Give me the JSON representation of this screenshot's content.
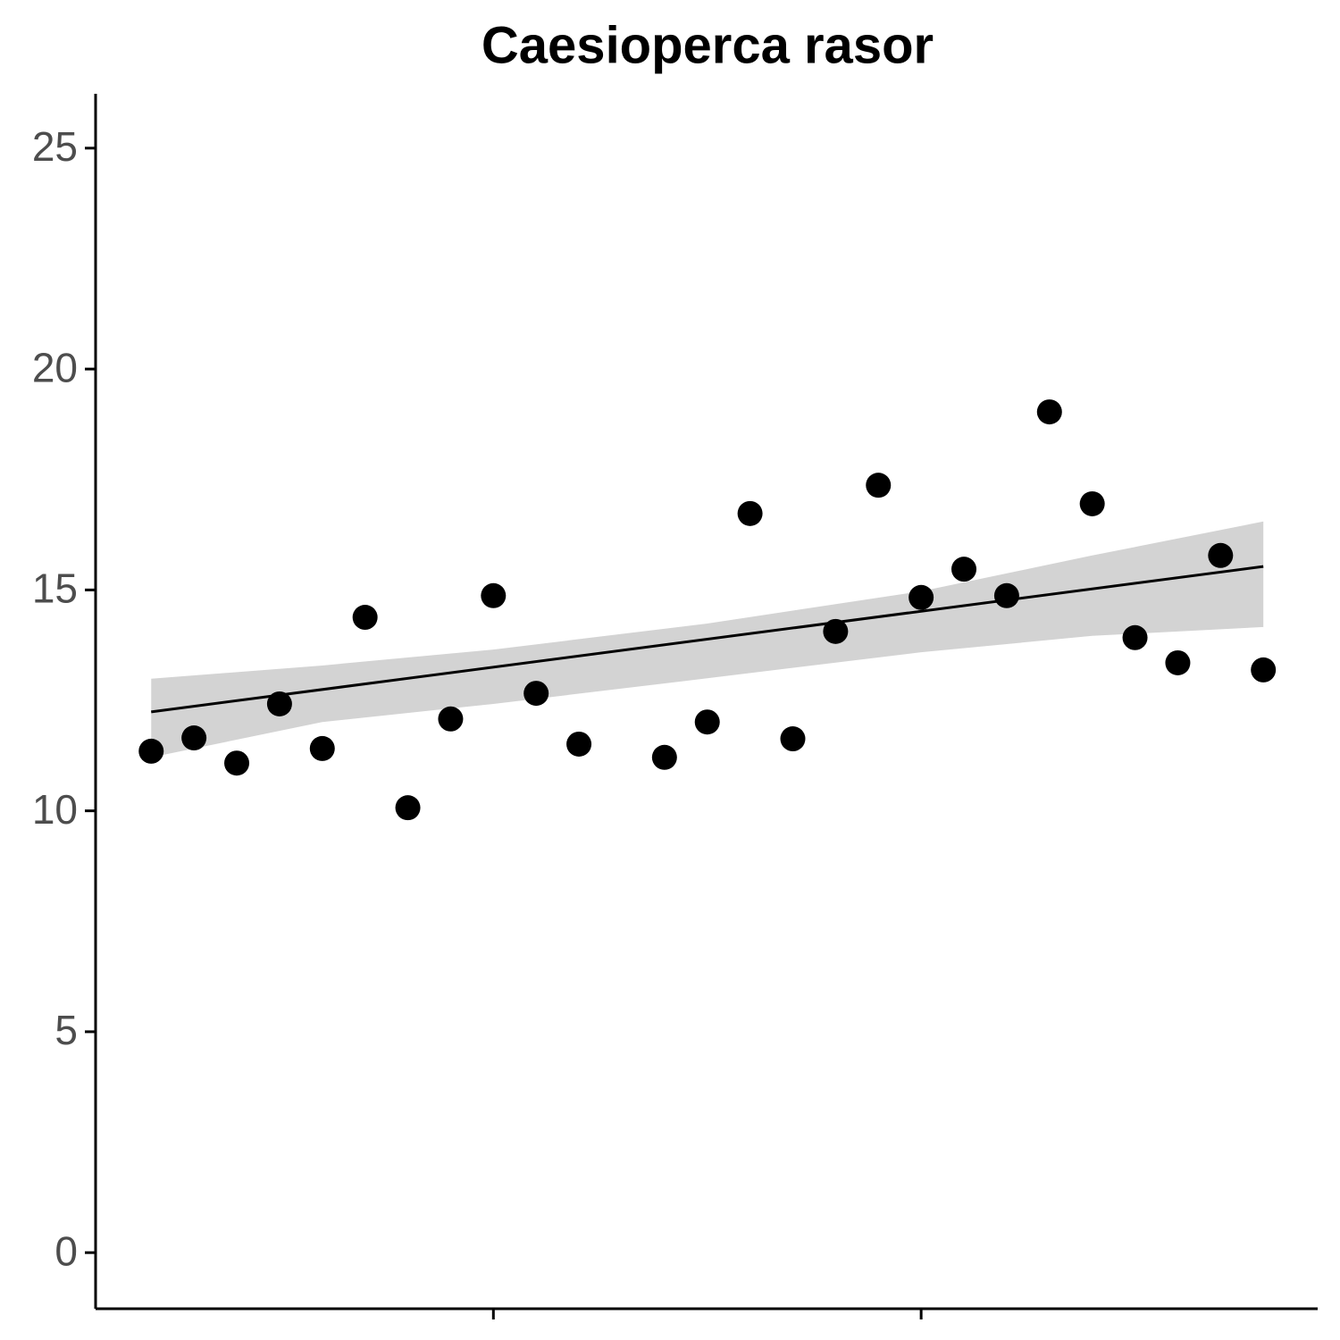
{
  "chart_data": {
    "type": "scatter",
    "title": "Caesioperca rasor",
    "x": [
      0,
      1,
      2,
      3,
      4,
      5,
      6,
      7,
      8,
      9,
      10,
      12,
      13,
      14,
      15,
      16,
      17,
      18,
      19,
      20,
      21,
      22,
      23,
      24,
      25,
      26
    ],
    "values": [
      11.35,
      11.65,
      11.08,
      12.42,
      11.41,
      14.38,
      10.07,
      12.08,
      14.87,
      12.66,
      11.51,
      11.21,
      12.01,
      16.73,
      11.63,
      14.06,
      17.37,
      14.83,
      15.47,
      14.87,
      19.03,
      16.95,
      13.92,
      13.35,
      15.78,
      13.19
    ],
    "color": "#000000",
    "trend": {
      "x": [
        0,
        26
      ],
      "values": [
        12.24,
        15.53
      ],
      "color": "#000000"
    },
    "band": {
      "x": [
        0,
        4,
        8,
        13,
        18,
        22,
        26
      ],
      "upper": [
        12.99,
        13.29,
        13.65,
        14.24,
        14.97,
        15.78,
        16.55
      ],
      "lower": [
        11.21,
        12.01,
        12.42,
        13.0,
        13.59,
        13.96,
        14.16
      ],
      "color": "#d3d3d3"
    },
    "xlim": [
      -1.3,
      27.27
    ],
    "xticks": [
      8,
      18
    ],
    "ylim": [
      -1.27,
      26.23
    ],
    "yticks": [
      0,
      5,
      10,
      15,
      20,
      25
    ]
  }
}
